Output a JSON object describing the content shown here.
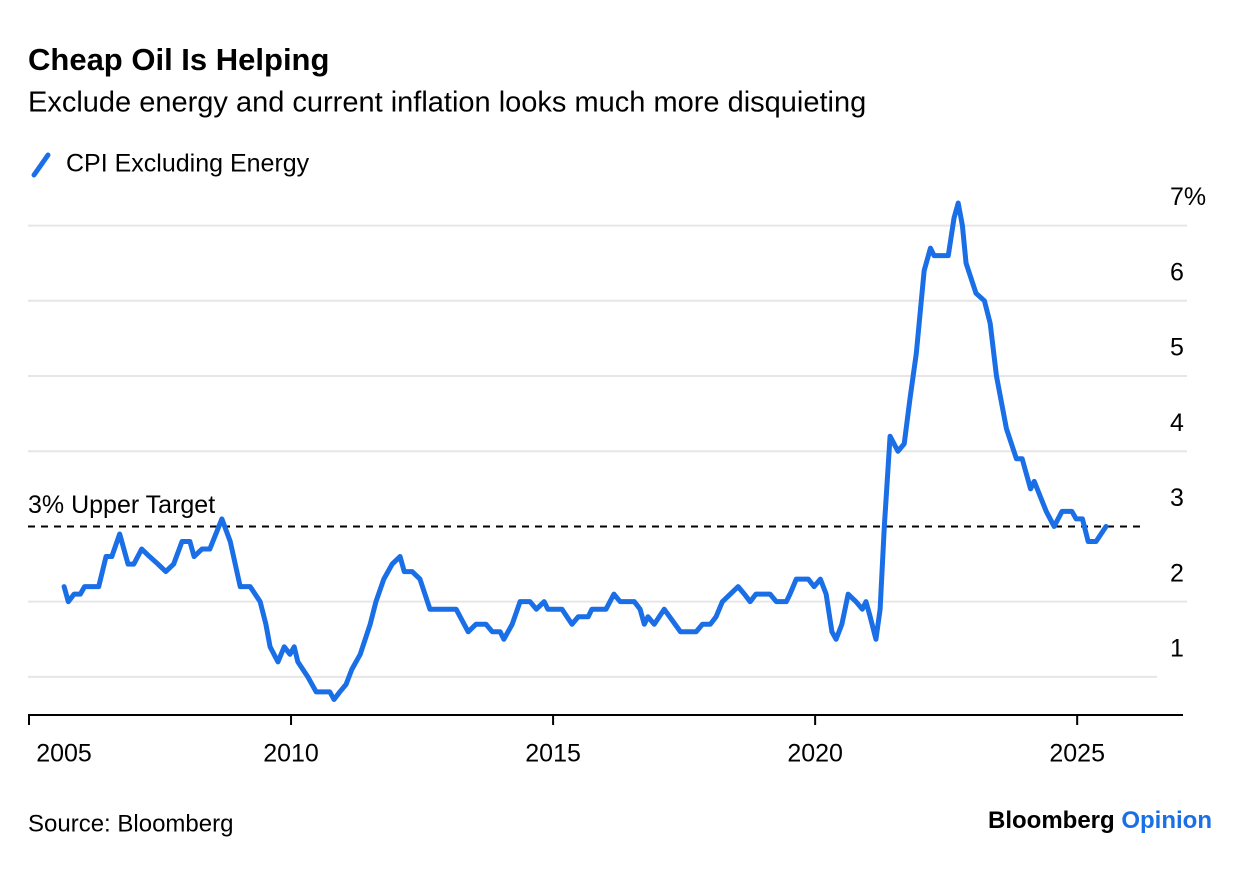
{
  "chart_data": {
    "type": "line",
    "title": "Cheap Oil Is Helping",
    "subtitle": "Exclude energy and current inflation looks much more disquieting",
    "source": "Source: Bloomberg",
    "logo": {
      "brand": "Bloomberg",
      "section": "Opinion"
    },
    "reference_line": {
      "value": 3,
      "label": "3% Upper Target"
    },
    "xlim": [
      2005,
      2027
    ],
    "xticks": [
      2005,
      2010,
      2015,
      2020,
      2025
    ],
    "ylim": [
      0.5,
      7.4
    ],
    "yticks": [
      1,
      2,
      3,
      4,
      5,
      6,
      {
        "value": 7,
        "label": "7%"
      }
    ],
    "grid": true,
    "x": [
      2005.67,
      2005.75,
      2005.86,
      2005.98,
      2006.06,
      2006.33,
      2006.47,
      2006.58,
      2006.73,
      2006.89,
      2007.0,
      2007.15,
      2007.3,
      2007.46,
      2007.61,
      2007.76,
      2007.92,
      2008.07,
      2008.15,
      2008.3,
      2008.45,
      2008.68,
      2008.84,
      2009.03,
      2009.22,
      2009.41,
      2009.52,
      2009.6,
      2009.75,
      2009.87,
      2009.98,
      2010.06,
      2010.13,
      2010.32,
      2010.48,
      2010.74,
      2010.82,
      2010.93,
      2011.05,
      2011.16,
      2011.32,
      2011.51,
      2011.62,
      2011.77,
      2011.93,
      2012.08,
      2012.16,
      2012.31,
      2012.46,
      2012.65,
      2013.15,
      2013.38,
      2013.53,
      2013.72,
      2013.84,
      2013.99,
      2014.06,
      2014.22,
      2014.37,
      2014.56,
      2014.68,
      2014.83,
      2014.9,
      2015.17,
      2015.36,
      2015.48,
      2015.67,
      2015.74,
      2016.01,
      2016.16,
      2016.28,
      2016.55,
      2016.66,
      2016.74,
      2016.81,
      2016.93,
      2017.12,
      2017.43,
      2017.73,
      2017.85,
      2018.0,
      2018.11,
      2018.23,
      2018.38,
      2018.53,
      2018.65,
      2018.76,
      2018.87,
      2019.14,
      2019.26,
      2019.45,
      2019.52,
      2019.64,
      2019.87,
      2019.98,
      2020.1,
      2020.21,
      2020.32,
      2020.4,
      2020.51,
      2020.63,
      2020.78,
      2020.9,
      2020.97,
      2021.05,
      2021.16,
      2021.24,
      2021.32,
      2021.43,
      2021.58,
      2021.7,
      2021.81,
      2021.93,
      2022.08,
      2022.2,
      2022.27,
      2022.54,
      2022.65,
      2022.73,
      2022.81,
      2022.88,
      2023.07,
      2023.23,
      2023.34,
      2023.46,
      2023.65,
      2023.84,
      2023.95,
      2024.11,
      2024.18,
      2024.41,
      2024.56,
      2024.71,
      2024.9,
      2024.98,
      2025.1,
      2025.21,
      2025.36,
      2025.55
    ],
    "series": [
      {
        "name": "CPI Excluding Energy",
        "color": "#1a6fe6",
        "values": [
          2.2,
          2.0,
          2.1,
          2.1,
          2.2,
          2.2,
          2.6,
          2.6,
          2.9,
          2.5,
          2.5,
          2.7,
          2.6,
          2.5,
          2.4,
          2.5,
          2.8,
          2.8,
          2.6,
          2.7,
          2.7,
          3.1,
          2.8,
          2.2,
          2.2,
          2.0,
          1.7,
          1.4,
          1.2,
          1.4,
          1.3,
          1.4,
          1.2,
          1.0,
          0.8,
          0.8,
          0.7,
          0.8,
          0.9,
          1.1,
          1.3,
          1.7,
          2.0,
          2.3,
          2.5,
          2.6,
          2.4,
          2.4,
          2.3,
          1.9,
          1.9,
          1.6,
          1.7,
          1.7,
          1.6,
          1.6,
          1.5,
          1.7,
          2.0,
          2.0,
          1.9,
          2.0,
          1.9,
          1.9,
          1.7,
          1.8,
          1.8,
          1.9,
          1.9,
          2.1,
          2.0,
          2.0,
          1.9,
          1.7,
          1.8,
          1.7,
          1.9,
          1.6,
          1.6,
          1.7,
          1.7,
          1.8,
          2.0,
          2.1,
          2.2,
          2.1,
          2.0,
          2.1,
          2.1,
          2.0,
          2.0,
          2.1,
          2.3,
          2.3,
          2.2,
          2.3,
          2.1,
          1.6,
          1.5,
          1.7,
          2.1,
          2.0,
          1.9,
          2.0,
          1.8,
          1.5,
          1.9,
          3.0,
          4.2,
          4.0,
          4.1,
          4.7,
          5.3,
          6.4,
          6.7,
          6.6,
          6.6,
          7.1,
          7.3,
          7.0,
          6.5,
          6.1,
          6.0,
          5.7,
          5.0,
          4.3,
          3.9,
          3.9,
          3.5,
          3.6,
          3.2,
          3.0,
          3.2,
          3.2,
          3.1,
          3.1,
          2.8,
          2.8,
          3.0
        ]
      }
    ]
  }
}
